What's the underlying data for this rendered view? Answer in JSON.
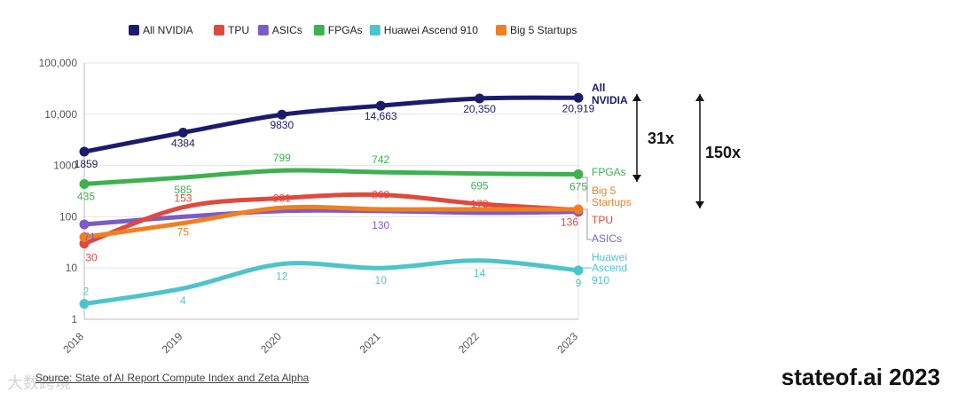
{
  "chart_data": {
    "type": "line",
    "yscale": "log",
    "ylim": [
      1,
      100000
    ],
    "y_ticks": [
      "1",
      "10",
      "100",
      "1000",
      "10,000",
      "100,000"
    ],
    "x": [
      "2018",
      "2019",
      "2020",
      "2021",
      "2022",
      "2023"
    ],
    "series": [
      {
        "name": "All NVIDIA",
        "color": "#1b1b6e",
        "values": [
          1859,
          4384,
          9830,
          14663,
          20350,
          20919
        ],
        "labels": [
          "1859",
          "4384",
          "9830",
          "14,663",
          "20,350",
          "20,919"
        ],
        "end_label": "All NVIDIA"
      },
      {
        "name": "TPU",
        "color": "#e0493e",
        "values": [
          30,
          153,
          231,
          268,
          178,
          136
        ],
        "labels": [
          "30",
          "153",
          "231",
          "268",
          "178",
          "136"
        ],
        "end_label": "TPU"
      },
      {
        "name": "ASICs",
        "color": "#7b5cc4",
        "values": [
          71,
          100,
          130,
          130,
          120,
          125
        ],
        "labels": [
          "71",
          "",
          "",
          "130",
          "",
          ""
        ],
        "end_label": "ASICs"
      },
      {
        "name": "FPGAs",
        "color": "#3fb04f",
        "values": [
          435,
          585,
          799,
          742,
          695,
          675
        ],
        "labels": [
          "435",
          "585",
          "799",
          "742",
          "695",
          "675"
        ],
        "end_label": "FPGAs"
      },
      {
        "name": "Huawei Ascend 910",
        "color": "#4ec3cc",
        "values": [
          2,
          4,
          12,
          10,
          14,
          9
        ],
        "labels": [
          "2",
          "4",
          "12",
          "10",
          "14",
          "9"
        ],
        "end_label": "Huawei Ascend 910"
      },
      {
        "name": "Big 5 Startups",
        "color": "#f07f22",
        "values": [
          40,
          75,
          150,
          140,
          140,
          140
        ],
        "labels": [
          "",
          "75",
          "",
          "",
          "",
          ""
        ],
        "end_label": "Big 5 Startups"
      }
    ],
    "annotations": [
      {
        "text": "31x",
        "from_series": "FPGAs",
        "to_series": "All NVIDIA"
      },
      {
        "text": "150x",
        "from_series": "TPU",
        "to_series": "All NVIDIA"
      }
    ]
  },
  "source": "Source: State of AI Report Compute Index and Zeta Alpha",
  "brand": "stateof.ai 2023",
  "watermark": "大数跨境"
}
